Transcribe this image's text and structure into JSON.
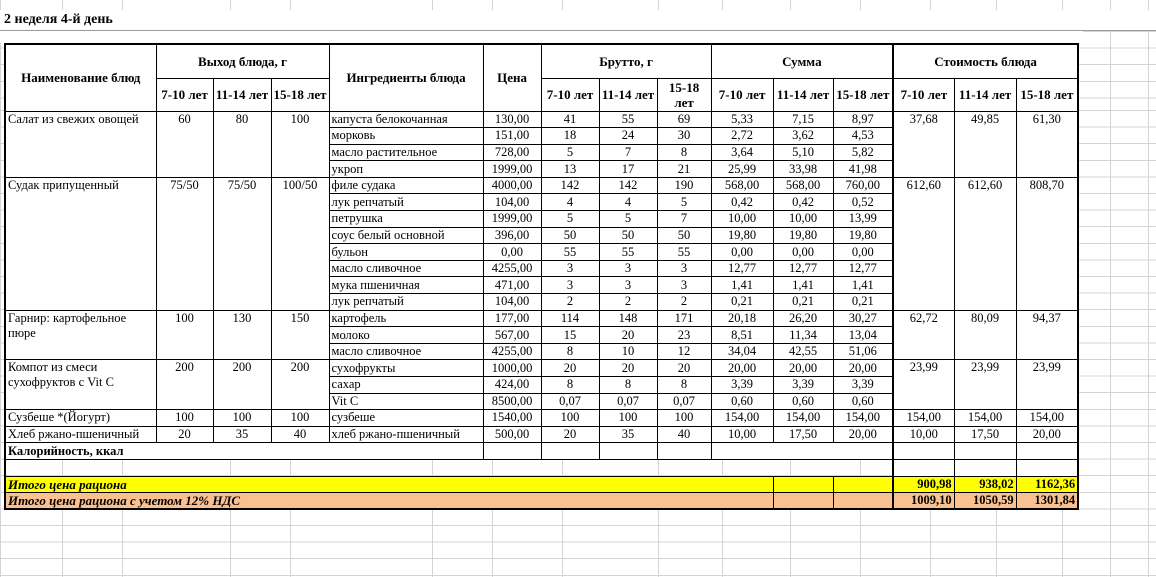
{
  "title": "2 неделя 4-й день",
  "header": {
    "dish": "Наименование блюд",
    "output": "Выход блюда, г",
    "ingredients": "Ингредиенты блюда",
    "price": "Цена",
    "gross": "Брутто, г",
    "sum": "Сумма",
    "cost": "Стоимость блюда",
    "ages": [
      "7-10 лет",
      "11-14 лет",
      "15-18 лет"
    ]
  },
  "dishes": [
    {
      "name": "Салат из свежих овощей",
      "output": [
        "60",
        "80",
        "100"
      ],
      "cost": [
        "37,68",
        "49,85",
        "61,30"
      ],
      "ingredients": [
        {
          "name": "капуста белокочанная",
          "price": "130,00",
          "gross": [
            "41",
            "55",
            "69"
          ],
          "sum": [
            "5,33",
            "7,15",
            "8,97"
          ]
        },
        {
          "name": "морковь",
          "price": "151,00",
          "gross": [
            "18",
            "24",
            "30"
          ],
          "sum": [
            "2,72",
            "3,62",
            "4,53"
          ]
        },
        {
          "name": "масло растительное",
          "price": "728,00",
          "gross": [
            "5",
            "7",
            "8"
          ],
          "sum": [
            "3,64",
            "5,10",
            "5,82"
          ]
        },
        {
          "name": "укроп",
          "price": "1999,00",
          "gross": [
            "13",
            "17",
            "21"
          ],
          "sum": [
            "25,99",
            "33,98",
            "41,98"
          ]
        }
      ]
    },
    {
      "name": "Судак припущенный",
      "output": [
        "75/50",
        "75/50",
        "100/50"
      ],
      "cost": [
        "612,60",
        "612,60",
        "808,70"
      ],
      "ingredients": [
        {
          "name": "филе судака",
          "price": "4000,00",
          "gross": [
            "142",
            "142",
            "190"
          ],
          "sum": [
            "568,00",
            "568,00",
            "760,00"
          ]
        },
        {
          "name": "лук репчатый",
          "price": "104,00",
          "gross": [
            "4",
            "4",
            "5"
          ],
          "sum": [
            "0,42",
            "0,42",
            "0,52"
          ]
        },
        {
          "name": "петрушка",
          "price": "1999,00",
          "gross": [
            "5",
            "5",
            "7"
          ],
          "sum": [
            "10,00",
            "10,00",
            "13,99"
          ]
        },
        {
          "name": "соус белый основной",
          "price": "396,00",
          "gross": [
            "50",
            "50",
            "50"
          ],
          "sum": [
            "19,80",
            "19,80",
            "19,80"
          ]
        },
        {
          "name": "бульон",
          "price": "0,00",
          "gross": [
            "55",
            "55",
            "55"
          ],
          "sum": [
            "0,00",
            "0,00",
            "0,00"
          ]
        },
        {
          "name": "масло сливочное",
          "price": "4255,00",
          "gross": [
            "3",
            "3",
            "3"
          ],
          "sum": [
            "12,77",
            "12,77",
            "12,77"
          ]
        },
        {
          "name": "мука пшеничная",
          "price": "471,00",
          "gross": [
            "3",
            "3",
            "3"
          ],
          "sum": [
            "1,41",
            "1,41",
            "1,41"
          ]
        },
        {
          "name": "лук репчатый",
          "price": "104,00",
          "gross": [
            "2",
            "2",
            "2"
          ],
          "sum": [
            "0,21",
            "0,21",
            "0,21"
          ]
        }
      ]
    },
    {
      "name": "Гарнир:  картофельное пюре",
      "output": [
        "100",
        "130",
        "150"
      ],
      "cost": [
        "62,72",
        "80,09",
        "94,37"
      ],
      "ingredients": [
        {
          "name": "картофель",
          "price": "177,00",
          "gross": [
            "114",
            "148",
            "171"
          ],
          "sum": [
            "20,18",
            "26,20",
            "30,27"
          ]
        },
        {
          "name": "молоко",
          "price": "567,00",
          "gross": [
            "15",
            "20",
            "23"
          ],
          "sum": [
            "8,51",
            "11,34",
            "13,04"
          ]
        },
        {
          "name": "масло сливочное",
          "price": "4255,00",
          "gross": [
            "8",
            "10",
            "12"
          ],
          "sum": [
            "34,04",
            "42,55",
            "51,06"
          ]
        }
      ]
    },
    {
      "name": "Компот из смеси сухофруктов с Vit C",
      "output": [
        "200",
        "200",
        "200"
      ],
      "cost": [
        "23,99",
        "23,99",
        "23,99"
      ],
      "ingredients": [
        {
          "name": "сухофрукты",
          "price": "1000,00",
          "gross": [
            "20",
            "20",
            "20"
          ],
          "sum": [
            "20,00",
            "20,00",
            "20,00"
          ]
        },
        {
          "name": "сахар",
          "price": "424,00",
          "gross": [
            "8",
            "8",
            "8"
          ],
          "sum": [
            "3,39",
            "3,39",
            "3,39"
          ]
        },
        {
          "name": "Vit C",
          "price": "8500,00",
          "gross": [
            "0,07",
            "0,07",
            "0,07"
          ],
          "sum": [
            "0,60",
            "0,60",
            "0,60"
          ]
        }
      ]
    },
    {
      "name": "Сузбеше *(Йогурт)",
      "output": [
        "100",
        "100",
        "100"
      ],
      "cost": [
        "154,00",
        "154,00",
        "154,00"
      ],
      "ingredients": [
        {
          "name": "сузбеше",
          "price": "1540,00",
          "gross": [
            "100",
            "100",
            "100"
          ],
          "sum": [
            "154,00",
            "154,00",
            "154,00"
          ]
        }
      ]
    },
    {
      "name": "Хлеб ржано-пшеничный",
      "output": [
        "20",
        "35",
        "40"
      ],
      "cost": [
        "10,00",
        "17,50",
        "20,00"
      ],
      "ingredients": [
        {
          "name": "хлеб ржано-пшеничный",
          "price": "500,00",
          "gross": [
            "20",
            "35",
            "40"
          ],
          "sum": [
            "10,00",
            "17,50",
            "20,00"
          ]
        }
      ]
    }
  ],
  "calories_label": "Калорийность, ккал",
  "totals": [
    {
      "label": "Итого цена рациона",
      "values": [
        "900,98",
        "938,02",
        "1162,36"
      ]
    },
    {
      "label": "Итого цена рациона с учетом 12% НДС",
      "values": [
        "1009,10",
        "1050,59",
        "1301,84"
      ]
    }
  ],
  "colors": {
    "total_row_bg": "#ffff00",
    "total_vat_row_bg": "#fac090",
    "grid_line": "#d4d4d4",
    "table_border": "#000000"
  }
}
